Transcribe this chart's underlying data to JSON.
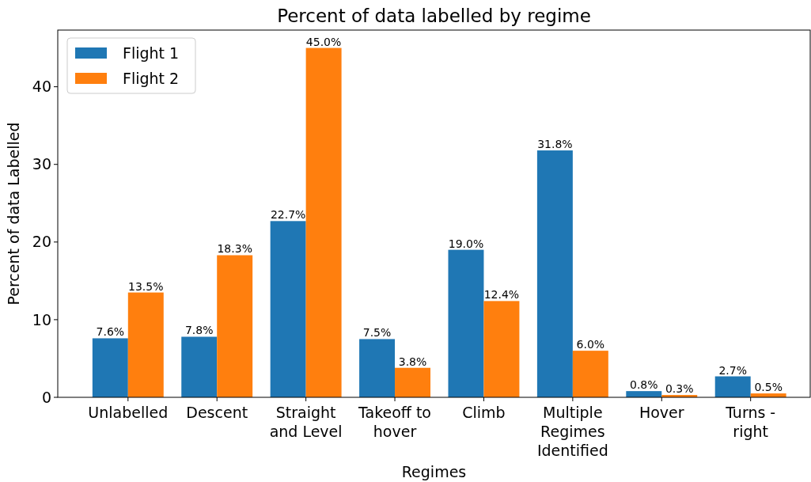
{
  "chart_data": {
    "type": "bar",
    "title": "Percent of data labelled by regime",
    "xlabel": "Regimes",
    "ylabel": "Percent of data Labelled",
    "categories": [
      "Unlabelled",
      "Descent",
      "Straight\nand Level",
      "Takeoff to\nhover",
      "Climb",
      "Multiple\nRegimes\nIdentified",
      "Hover",
      "Turns -\nright"
    ],
    "series": [
      {
        "name": "Flight 1",
        "color": "#1f77b4",
        "values": [
          7.6,
          7.8,
          22.7,
          7.5,
          19.0,
          31.8,
          0.8,
          2.7
        ],
        "value_labels": [
          "7.6%",
          "7.8%",
          "22.7%",
          "7.5%",
          "19.0%",
          "31.8%",
          "0.8%",
          "2.7%"
        ]
      },
      {
        "name": "Flight 2",
        "color": "#ff7f0e",
        "values": [
          13.5,
          18.3,
          45.0,
          3.8,
          12.4,
          6.0,
          0.3,
          0.5
        ],
        "value_labels": [
          "13.5%",
          "18.3%",
          "45.0%",
          "3.8%",
          "12.4%",
          "6.0%",
          "0.3%",
          "0.5%"
        ]
      }
    ],
    "ylim": [
      0,
      47.3
    ],
    "yticks": [
      0,
      10,
      20,
      30,
      40
    ],
    "legend": "top left"
  }
}
